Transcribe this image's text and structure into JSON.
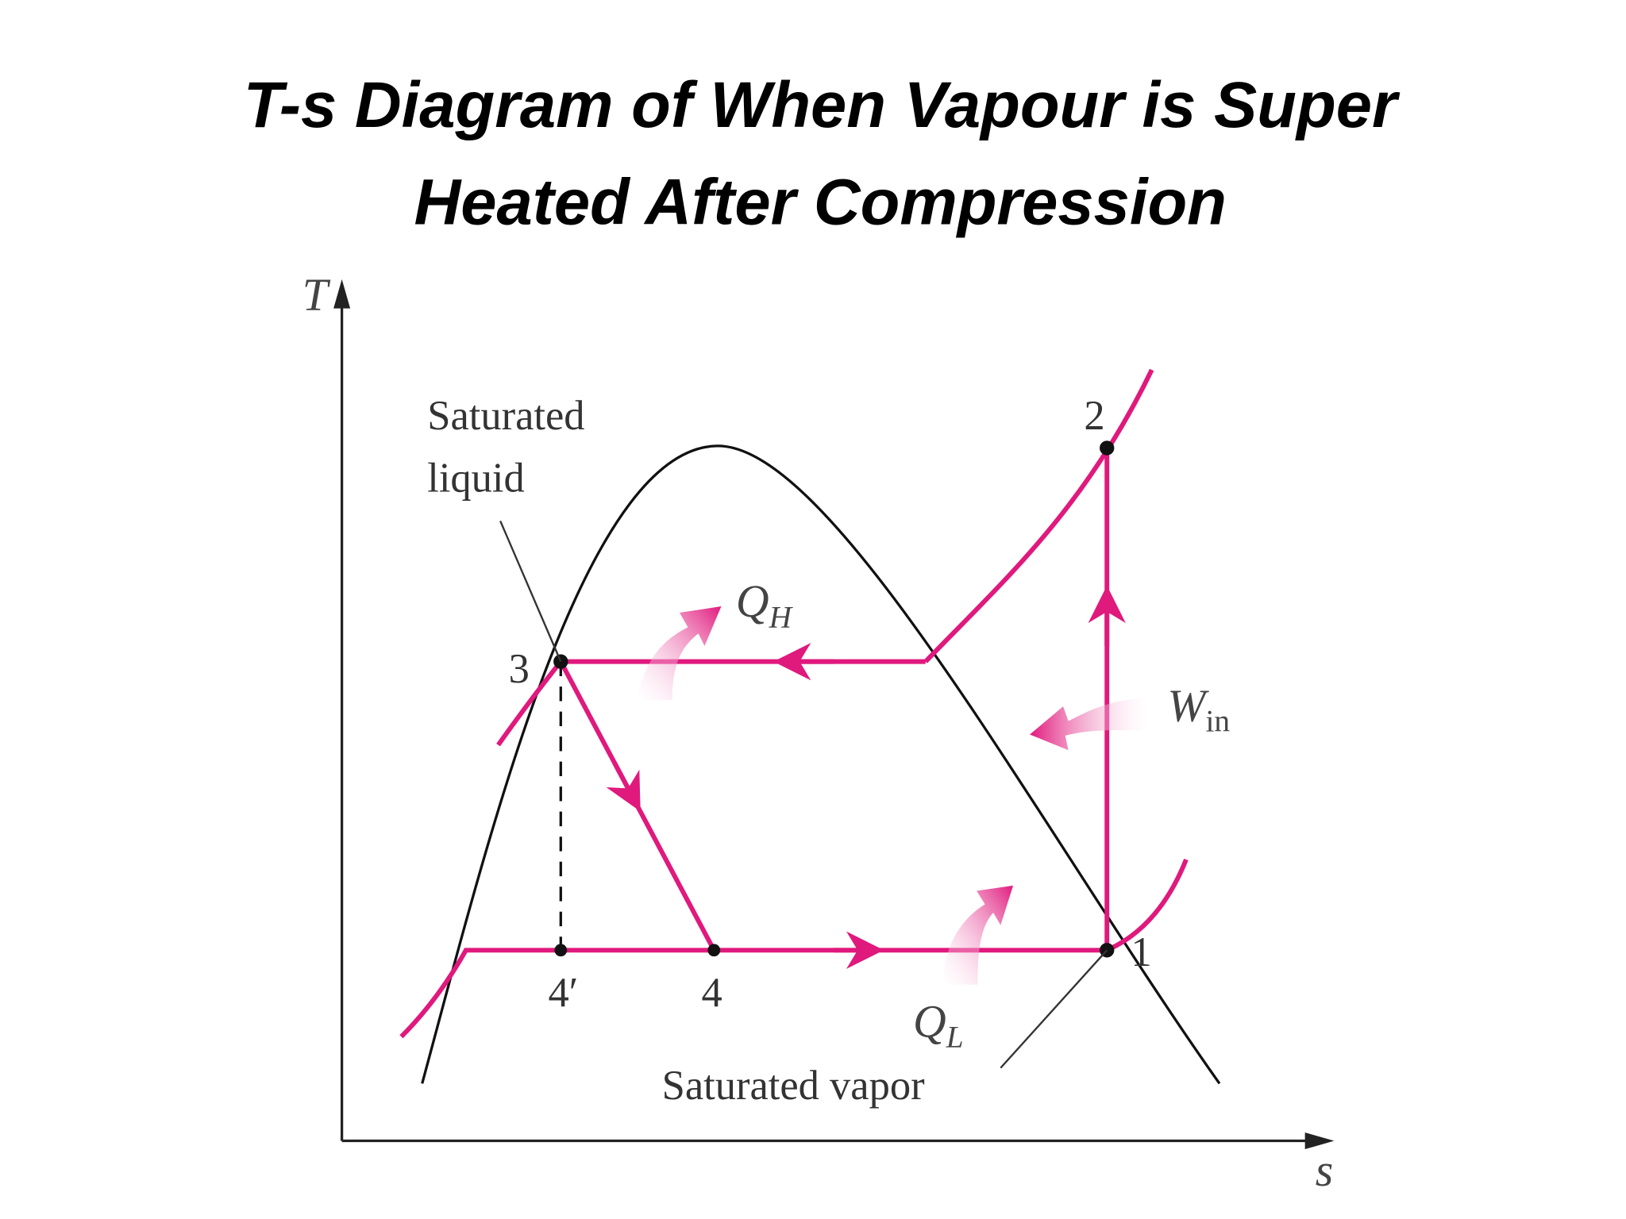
{
  "title": {
    "lines": [
      "T-s Diagram of When Vapour is Super",
      "Heated After Compression"
    ]
  },
  "axes": {
    "y": "T",
    "x": "s"
  },
  "labels": {
    "saturated_liquid": [
      "Saturated",
      "liquid"
    ],
    "saturated_vapor": "Saturated vapor",
    "states": {
      "s1": "1",
      "s2": "2",
      "s3": "3",
      "s4": "4",
      "s4p": "4′"
    },
    "heat_high": {
      "symbol": "Q",
      "subscript": "H"
    },
    "heat_low": {
      "symbol": "Q",
      "subscript": "L"
    },
    "work_in": {
      "symbol": "W",
      "subscript": "in"
    }
  }
}
